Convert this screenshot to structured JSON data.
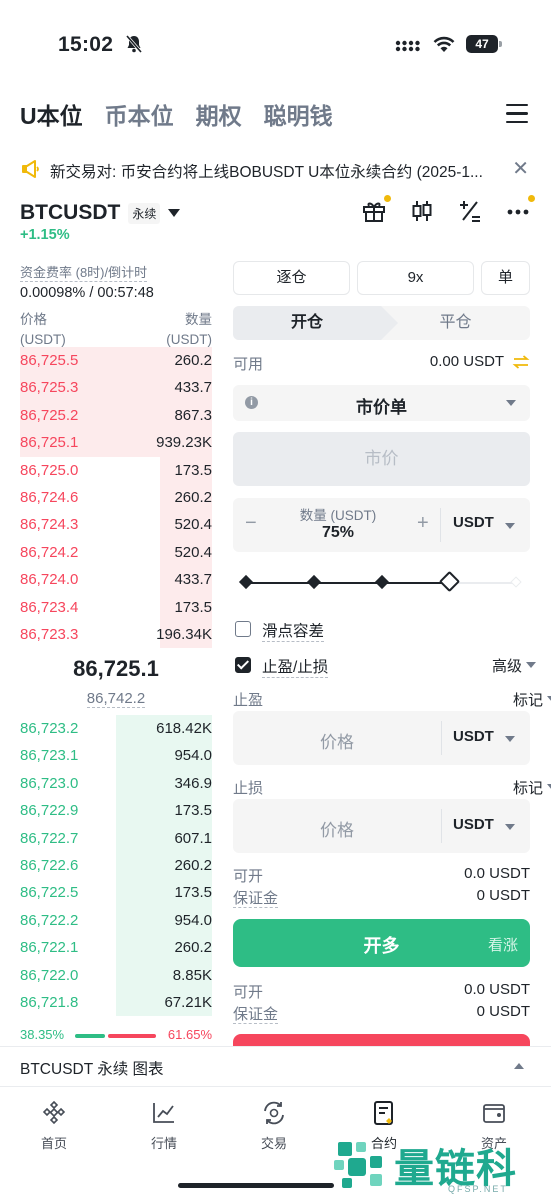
{
  "status_bar": {
    "time": "15:02",
    "battery": "47"
  },
  "top_tabs": [
    {
      "label": "U本位",
      "active": true
    },
    {
      "label": "币本位",
      "active": false
    },
    {
      "label": "期权",
      "active": false
    },
    {
      "label": "聪明钱",
      "active": false
    }
  ],
  "announcement": {
    "text": "新交易对: 币安合约将上线BOBUSDT U本位永续合约 (2025-1..."
  },
  "symbol": {
    "name": "BTCUSDT",
    "badge": "永续",
    "change": "+1.15%"
  },
  "funding": {
    "label": "资金费率 (8时)/倒计时",
    "value": "0.00098% / 00:57:48"
  },
  "orderbook": {
    "price_header": "价格",
    "price_unit": "(USDT)",
    "qty_header": "数量",
    "qty_unit": "(USDT)",
    "asks": [
      {
        "price": "86,725.5",
        "qty": "260.2",
        "depth": 1.0
      },
      {
        "price": "86,725.3",
        "qty": "433.7",
        "depth": 1.0
      },
      {
        "price": "86,725.2",
        "qty": "867.3",
        "depth": 1.0
      },
      {
        "price": "86,725.1",
        "qty": "939.23K",
        "depth": 1.0
      },
      {
        "price": "86,725.0",
        "qty": "173.5",
        "depth": 0.27
      },
      {
        "price": "86,724.6",
        "qty": "260.2",
        "depth": 0.27
      },
      {
        "price": "86,724.3",
        "qty": "520.4",
        "depth": 0.27
      },
      {
        "price": "86,724.2",
        "qty": "520.4",
        "depth": 0.27
      },
      {
        "price": "86,724.0",
        "qty": "433.7",
        "depth": 0.27
      },
      {
        "price": "86,723.4",
        "qty": "173.5",
        "depth": 0.27
      },
      {
        "price": "86,723.3",
        "qty": "196.34K",
        "depth": 0.27
      }
    ],
    "mid_price": "86,725.1",
    "mark_price": "86,742.2",
    "bids": [
      {
        "price": "86,723.2",
        "qty": "618.42K",
        "depth": 0.5
      },
      {
        "price": "86,723.1",
        "qty": "954.0",
        "depth": 0.5
      },
      {
        "price": "86,723.0",
        "qty": "346.9",
        "depth": 0.5
      },
      {
        "price": "86,722.9",
        "qty": "173.5",
        "depth": 0.5
      },
      {
        "price": "86,722.7",
        "qty": "607.1",
        "depth": 0.5
      },
      {
        "price": "86,722.6",
        "qty": "260.2",
        "depth": 0.5
      },
      {
        "price": "86,722.5",
        "qty": "173.5",
        "depth": 0.5
      },
      {
        "price": "86,722.2",
        "qty": "954.0",
        "depth": 0.5
      },
      {
        "price": "86,722.1",
        "qty": "260.2",
        "depth": 0.5
      },
      {
        "price": "86,722.0",
        "qty": "8.85K",
        "depth": 0.5
      },
      {
        "price": "86,721.8",
        "qty": "67.21K",
        "depth": 0.5
      }
    ],
    "buy_ratio": "38.35%",
    "sell_ratio": "61.65%"
  },
  "panel": {
    "margin_mode": "逐仓",
    "leverage": "9x",
    "position_mode": "单",
    "tab_open": "开仓",
    "tab_close": "平仓",
    "available_label": "可用",
    "available_value": "0.00 USDT",
    "order_type": "市价单",
    "price_placeholder": "市价",
    "qty_label": "数量 (USDT)",
    "qty_value": "75%",
    "qty_unit": "USDT",
    "slider_percent": 75,
    "slippage_label": "滑点容差",
    "tpsl_label": "止盈/止损",
    "advanced_label": "高级",
    "tp_label": "止盈",
    "tp_price_type": "标记",
    "tp_placeholder": "价格",
    "tp_unit": "USDT",
    "sl_label": "止损",
    "sl_price_type": "标记",
    "sl_placeholder": "价格",
    "sl_unit": "USDT",
    "can_open_label": "可开",
    "can_open_value": "0.0 USDT",
    "margin_label": "保证金",
    "margin_value": "0 USDT",
    "long_button": "开多",
    "long_hint": "看涨",
    "can_open_label_2": "可开",
    "can_open_value_2": "0.0 USDT",
    "margin_label_2": "保证金",
    "margin_value_2": "0 USDT"
  },
  "chart_bar": {
    "label": "BTCUSDT 永续  图表"
  },
  "bottom_nav": [
    {
      "label": "首页",
      "icon": "home-icon"
    },
    {
      "label": "行情",
      "icon": "markets-icon"
    },
    {
      "label": "交易",
      "icon": "trade-icon"
    },
    {
      "label": "合约",
      "icon": "futures-icon"
    },
    {
      "label": "资产",
      "icon": "wallet-icon"
    }
  ],
  "watermark": {
    "text": "量链科技",
    "sub": "QFSP.NET"
  },
  "colors": {
    "green": "#2ebd85",
    "red": "#f6465d",
    "accent": "#f0b90b"
  }
}
